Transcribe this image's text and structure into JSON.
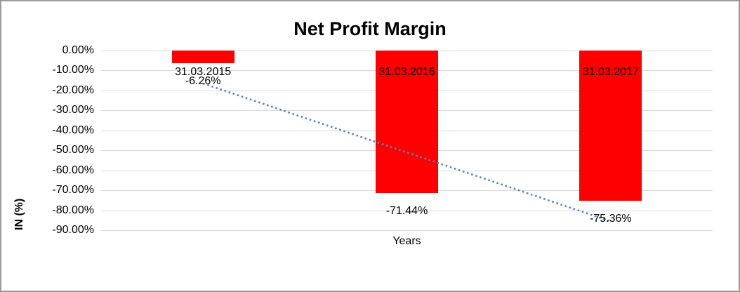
{
  "chart_data": {
    "type": "bar",
    "title": "Net Profit Margin",
    "categories": [
      "31.03.2015",
      "31.03.2016",
      "31.03.2017"
    ],
    "values": [
      -6.26,
      -71.44,
      -75.36
    ],
    "data_labels": [
      "-6.26%",
      "-71.44%",
      "-75.36%"
    ],
    "xlabel": "Years",
    "ylabel": "IN (%)",
    "ylim": [
      -90,
      0
    ],
    "y_tick_step": 10,
    "y_tick_labels": [
      "0.00%",
      "-10.00%",
      "-20.00%",
      "-30.00%",
      "-40.00%",
      "-50.00%",
      "-60.00%",
      "-70.00%",
      "-80.00%",
      "-90.00%"
    ],
    "grid": true,
    "legend": "none",
    "bar_color": "#FF0000",
    "gridline_color": "#d9d9d9",
    "trendline": {
      "type": "linear",
      "style": "dotted",
      "color": "#4E87C8"
    }
  }
}
